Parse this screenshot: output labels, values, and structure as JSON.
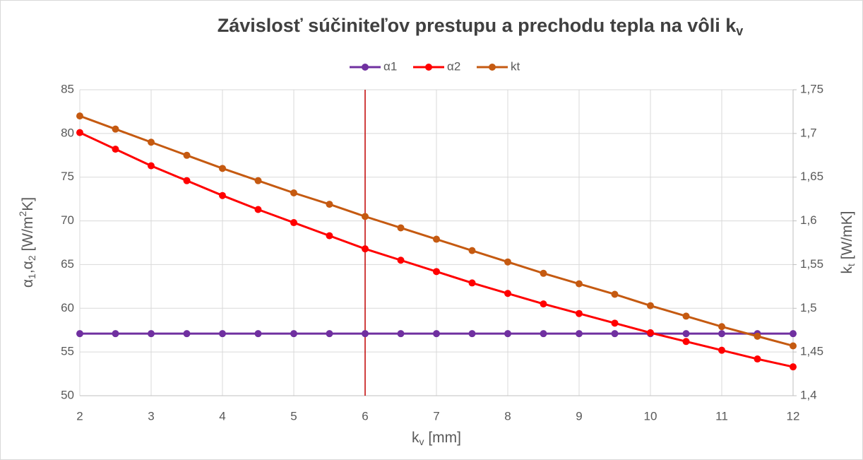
{
  "chart_data": {
    "type": "line",
    "title": "Závislosť súčiniteľov prestupu a prechodu tepla na vôli k",
    "title_subscript": "v",
    "x_label": [
      "k",
      "v",
      " [mm]"
    ],
    "y_label": [
      "α",
      "1",
      ",α",
      "2",
      " [W/m",
      "2",
      "K]"
    ],
    "y2_label": [
      "k",
      "t",
      " [W/mK]"
    ],
    "x": [
      2,
      2.5,
      3,
      3.5,
      4,
      4.5,
      5,
      5.5,
      6,
      6.5,
      7,
      7.5,
      8,
      8.5,
      9,
      9.5,
      10,
      10.5,
      11,
      11.5,
      12
    ],
    "series": [
      {
        "name": "α1",
        "color": "#7030a0",
        "values": [
          57.1,
          57.1,
          57.1,
          57.1,
          57.1,
          57.1,
          57.1,
          57.1,
          57.1,
          57.1,
          57.1,
          57.1,
          57.1,
          57.1,
          57.1,
          57.1,
          57.1,
          57.1,
          57.1,
          57.1,
          57.1
        ]
      },
      {
        "name": "α2",
        "color": "#ff0000",
        "values": [
          80.1,
          78.2,
          76.3,
          74.6,
          72.9,
          71.3,
          69.8,
          68.3,
          66.8,
          65.5,
          64.2,
          62.9,
          61.7,
          60.5,
          59.4,
          58.3,
          57.2,
          56.2,
          55.2,
          54.2,
          53.3
        ]
      },
      {
        "name": "kt",
        "color": "#c55a11",
        "axis": "y2",
        "values": [
          1.72,
          1.705,
          1.69,
          1.675,
          1.66,
          1.646,
          1.632,
          1.619,
          1.605,
          1.592,
          1.579,
          1.566,
          1.553,
          1.54,
          1.528,
          1.516,
          1.503,
          1.491,
          1.479,
          1.468,
          1.457
        ]
      }
    ],
    "xlim": [
      2,
      12
    ],
    "xticks": [
      2,
      3,
      4,
      5,
      6,
      7,
      8,
      9,
      10,
      11,
      12
    ],
    "ylim": [
      50,
      85
    ],
    "yticks": [
      50,
      55,
      60,
      65,
      70,
      75,
      80,
      85
    ],
    "y2lim": [
      1.4,
      1.75
    ],
    "y2ticks": [
      {
        "value": 1.4,
        "label": "1,4"
      },
      {
        "value": 1.45,
        "label": "1,45"
      },
      {
        "value": 1.5,
        "label": "1,5"
      },
      {
        "value": 1.55,
        "label": "1,55"
      },
      {
        "value": 1.6,
        "label": "1,6"
      },
      {
        "value": 1.65,
        "label": "1,65"
      },
      {
        "value": 1.7,
        "label": "1,7"
      },
      {
        "value": 1.75,
        "label": "1,75"
      }
    ],
    "reference_line": {
      "x": 6,
      "color": "#c00000"
    },
    "grid": true,
    "legend": "top"
  }
}
